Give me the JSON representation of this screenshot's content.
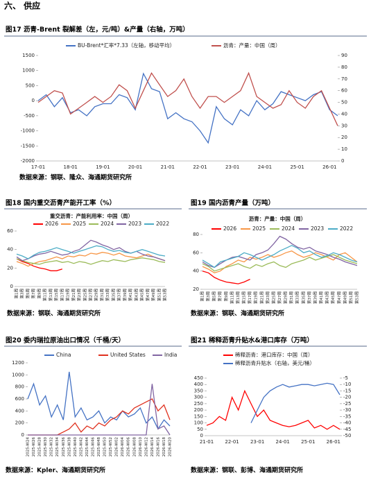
{
  "section_title": "六、 供应",
  "chart_data": [
    {
      "type": "line",
      "figure_title": "图17 沥青-Brent 裂解差（左，元/吨）&产量（右轴，万吨）",
      "source": "数据来源：钢联、隆众、海通期货研究所",
      "categories": [
        "17-01",
        null,
        null,
        null,
        "18-01",
        null,
        null,
        null,
        "19-01",
        null,
        null,
        null,
        "20-01",
        null,
        null,
        null,
        "21-01",
        null,
        null,
        null,
        "22-01",
        null,
        null,
        null,
        "23-01",
        null,
        null,
        null,
        "24-01",
        null,
        null,
        null,
        "25-01",
        null,
        null,
        null,
        "26-01",
        null
      ],
      "series": [
        {
          "name": "BU-Brent*汇率*7.33（左轴，移动平均）",
          "color": "#4472c4",
          "values": [
            0,
            200,
            -200,
            100,
            -400,
            -300,
            -500,
            -200,
            -100,
            -100,
            200,
            100,
            -300,
            900,
            400,
            300,
            -600,
            -400,
            -600,
            -700,
            -1000,
            -1400,
            -200,
            -600,
            -800,
            -300,
            -500,
            0,
            -300,
            -100,
            300,
            200,
            100,
            0,
            200,
            300,
            -300,
            -500
          ]
        },
        {
          "name": "沥青：产量：中国（周）",
          "color": "#c0504d",
          "axis": "y2",
          "values": [
            50,
            55,
            60,
            58,
            40,
            45,
            50,
            55,
            50,
            55,
            65,
            60,
            45,
            60,
            75,
            65,
            55,
            60,
            70,
            55,
            45,
            55,
            55,
            50,
            55,
            60,
            75,
            55,
            50,
            45,
            48,
            60,
            50,
            45,
            55,
            60,
            45,
            30
          ]
        }
      ],
      "ylim": [
        -2000,
        1500
      ],
      "yticks": [
        -2000,
        -1500,
        -1000,
        -500,
        0,
        500,
        1000,
        1500
      ],
      "y2lim": [
        0,
        90
      ],
      "y2ticks": [
        0,
        10,
        20,
        30,
        40,
        50,
        60,
        70,
        80,
        90
      ]
    },
    {
      "type": "line",
      "figure_title": "图18 国内重交沥青产能开工率（%）",
      "title": "重交沥青：产能利用率：中国（周）",
      "source": "数据来源：钢联、海通期货研究所",
      "categories": [
        "第1周",
        "第3周",
        "第5周",
        "第7周",
        "第9周",
        "第11周",
        "第13周",
        "第15周",
        "第17周",
        "第19周",
        "第21周",
        "第23周",
        "第25周",
        "第27周",
        "第29周",
        "第31周",
        "第33周",
        "第35周",
        "第37周",
        "第39周",
        "第41周",
        "第43周",
        "第45周",
        "第47周",
        "第49周",
        "第51周",
        "第53周"
      ],
      "series": [
        {
          "name": "2026",
          "color": "#ff0000",
          "values": [
            30,
            27,
            25,
            22,
            20,
            19,
            17,
            17,
            19,
            null,
            null,
            null,
            null,
            null,
            null,
            null,
            null,
            null,
            null,
            null,
            null,
            null,
            null,
            null,
            null,
            null,
            null
          ]
        },
        {
          "name": "2025",
          "color": "#f79646",
          "values": [
            27,
            25,
            22,
            25,
            27,
            28,
            30,
            32,
            30,
            33,
            32,
            34,
            33,
            36,
            35,
            37,
            36,
            34,
            36,
            33,
            32,
            31,
            33,
            35,
            32,
            30,
            28
          ]
        },
        {
          "name": "2024",
          "color": "#9bbb59",
          "values": [
            30,
            28,
            26,
            25,
            24,
            26,
            27,
            28,
            26,
            27,
            25,
            27,
            26,
            24,
            26,
            28,
            27,
            29,
            28,
            27,
            29,
            30,
            31,
            30,
            29,
            27,
            26
          ]
        },
        {
          "name": "2023",
          "color": "#8064a2",
          "values": [
            32,
            28,
            30,
            33,
            35,
            36,
            38,
            36,
            34,
            35,
            38,
            40,
            45,
            50,
            48,
            45,
            43,
            40,
            42,
            38,
            36,
            38,
            35,
            33,
            32,
            30,
            28
          ]
        },
        {
          "name": "2022",
          "color": "#4bacc6",
          "values": [
            35,
            33,
            30,
            34,
            37,
            38,
            40,
            42,
            40,
            38,
            36,
            38,
            40,
            42,
            44,
            43,
            40,
            38,
            39,
            37,
            36,
            38,
            40,
            38,
            36,
            34,
            33
          ]
        }
      ],
      "ylim": [
        0,
        60
      ],
      "yticks": [
        0,
        20,
        40,
        60
      ]
    },
    {
      "type": "line",
      "figure_title": "图19 国内沥青产量（万吨）",
      "title": "沥青：产量：中国（周）",
      "source": "数据来源：钢联、海通期货研究所",
      "categories": [
        "第1周",
        "第3周",
        "第5周",
        "第7周",
        "第9周",
        "第11周",
        "第13周",
        "第15周",
        "第17周",
        "第19周",
        "第21周",
        "第23周",
        "第25周",
        "第27周",
        "第29周",
        "第31周",
        "第33周",
        "第35周",
        "第37周",
        "第39周",
        "第41周",
        "第43周",
        "第45周",
        "第47周",
        "第49周",
        "第51周",
        "第53周"
      ],
      "series": [
        {
          "name": "2026",
          "color": "#ff0000",
          "values": [
            40,
            38,
            33,
            30,
            28,
            27,
            26,
            28,
            31,
            null,
            null,
            null,
            null,
            null,
            null,
            null,
            null,
            null,
            null,
            null,
            null,
            null,
            null,
            null,
            null,
            null,
            null
          ]
        },
        {
          "name": "2025",
          "color": "#f79646",
          "values": [
            45,
            42,
            38,
            40,
            45,
            48,
            52,
            50,
            55,
            53,
            55,
            58,
            55,
            57,
            60,
            62,
            58,
            55,
            57,
            60,
            58,
            55,
            52,
            58,
            60,
            55,
            50
          ]
        },
        {
          "name": "2024",
          "color": "#9bbb59",
          "values": [
            48,
            45,
            40,
            42,
            44,
            46,
            48,
            45,
            43,
            47,
            45,
            48,
            50,
            46,
            44,
            48,
            50,
            52,
            55,
            52,
            54,
            56,
            58,
            55,
            52,
            50,
            48
          ]
        },
        {
          "name": "2023",
          "color": "#8064a2",
          "values": [
            50,
            46,
            44,
            48,
            52,
            55,
            56,
            54,
            52,
            58,
            60,
            63,
            70,
            78,
            75,
            70,
            66,
            64,
            66,
            62,
            60,
            58,
            55,
            53,
            50,
            48,
            46
          ]
        },
        {
          "name": "2022",
          "color": "#4bacc6",
          "values": [
            52,
            48,
            44,
            50,
            52,
            54,
            56,
            60,
            58,
            55,
            52,
            55,
            58,
            62,
            65,
            68,
            65,
            60,
            62,
            58,
            55,
            57,
            60,
            58,
            55,
            52,
            50
          ]
        }
      ],
      "ylim": [
        20,
        80
      ],
      "yticks": [
        20,
        40,
        60,
        80
      ]
    },
    {
      "type": "line",
      "figure_title": "图20 委内瑞拉原油出口情况（千桶/天）",
      "source": "数据来源：Kpler、海通期货研究所",
      "categories": [
        "2025-W24",
        "2025-W26",
        "2025-W28",
        "2025-W30",
        "2025-W32",
        "2025-W34",
        "2025-W36",
        "2025-W38",
        "2025-W40",
        "2025-W42",
        "2025-W44",
        "2025-W46",
        "2025-W48",
        "2025-W50",
        "2025-W52",
        "2026-W02",
        "2026-W04",
        "2026-W06",
        "2026-W08",
        "2026-W10",
        "2026-W12",
        "2026-W14",
        "2026-W16",
        "2026-W18",
        "2026-W20"
      ],
      "series": [
        {
          "name": "China",
          "color": "#4472c4",
          "values": [
            600,
            850,
            500,
            650,
            300,
            500,
            250,
            1050,
            300,
            450,
            250,
            300,
            400,
            200,
            300,
            250,
            400,
            300,
            350,
            450,
            200,
            300,
            100,
            250,
            150
          ]
        },
        {
          "name": "United States",
          "color": "#e0301e",
          "values": [
            0,
            0,
            0,
            0,
            0,
            0,
            50,
            100,
            200,
            50,
            150,
            100,
            200,
            150,
            250,
            300,
            400,
            350,
            450,
            500,
            550,
            600,
            400,
            500,
            250
          ]
        },
        {
          "name": "India",
          "color": "#8064a2",
          "values": [
            0,
            0,
            0,
            0,
            0,
            0,
            0,
            0,
            0,
            0,
            0,
            0,
            0,
            0,
            0,
            0,
            0,
            0,
            0,
            0,
            0,
            850,
            100,
            150,
            0
          ]
        }
      ],
      "ylim": [
        0,
        1200
      ],
      "yticks": [
        0,
        200,
        400,
        600,
        800,
        1000,
        1200
      ]
    },
    {
      "type": "line",
      "figure_title": "图21 稀释沥青升贴水&港口库存（万吨）",
      "source": "数据来源：钢联、彭博、海通期货研究所",
      "categories": [
        "21-01",
        null,
        null,
        null,
        "22-01",
        null,
        null,
        null,
        "23-01",
        null,
        null,
        null,
        "24-01",
        null,
        null,
        null,
        "25-01",
        null,
        null,
        null,
        "26-01",
        null
      ],
      "series": [
        {
          "name": "稀释沥青：港口库存：中国（周）",
          "color": "#ff0000",
          "values": [
            80,
            100,
            150,
            120,
            300,
            200,
            350,
            250,
            150,
            200,
            120,
            100,
            80,
            70,
            80,
            100,
            120,
            60,
            80,
            50,
            80,
            50
          ]
        },
        {
          "name": "稀释沥青升贴水（右轴，美元/桶）",
          "color": "#4472c4",
          "axis": "y2",
          "values": [
            null,
            null,
            null,
            null,
            null,
            null,
            null,
            -40,
            -30,
            -20,
            -15,
            -12,
            -10,
            -12,
            -11,
            -10,
            -10,
            -11,
            -10,
            -9,
            -10,
            -18
          ]
        }
      ],
      "ylim": [
        0,
        450
      ],
      "yticks": [
        0,
        50,
        100,
        150,
        200,
        250,
        300,
        350,
        400,
        450
      ],
      "y2lim": [
        -50,
        -5
      ],
      "y2ticks": [
        -50,
        -45,
        -40,
        -35,
        -30,
        -25,
        -20,
        -15,
        -10,
        -5
      ]
    }
  ]
}
